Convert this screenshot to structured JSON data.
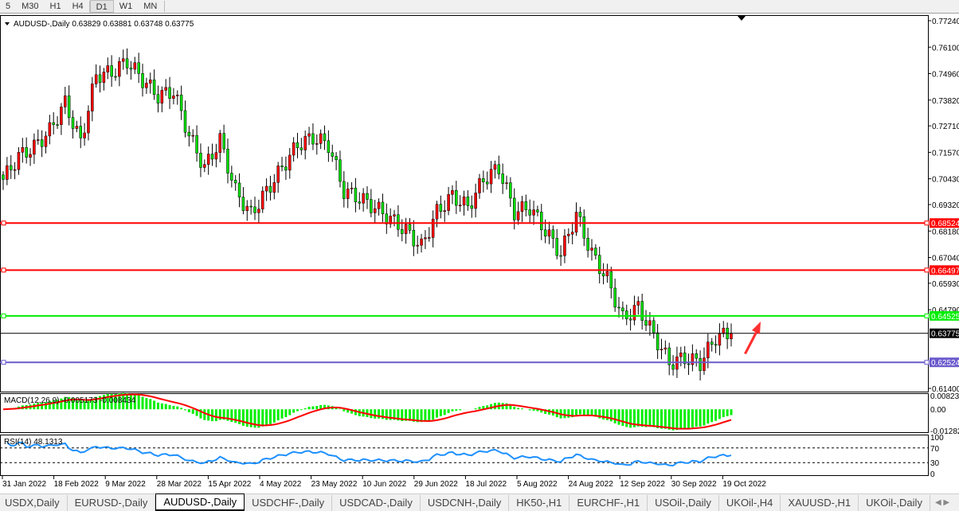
{
  "toolbar": {
    "timeframes": [
      "5",
      "M30",
      "H1",
      "H4",
      "D1",
      "W1",
      "MN"
    ],
    "active": "D1"
  },
  "chart_header": {
    "symbol": "AUDUSD-,Daily",
    "ohlc": "0.63829 0.63881 0.63748 0.63775"
  },
  "chart_data": {
    "type": "candlestick",
    "symbol": "AUDUSD-",
    "timeframe": "Daily",
    "price_ticks": [
      "0.77240",
      "0.76100",
      "0.74960",
      "0.73820",
      "0.72710",
      "0.71570",
      "0.70430",
      "0.69320",
      "0.68180",
      "0.67040",
      "0.65930",
      "0.64790",
      "0.61400"
    ],
    "ylim": [
      0.614,
      0.7724
    ],
    "date_ticks": [
      "31 Jan 2022",
      "18 Feb 2022",
      "9 Mar 2022",
      "28 Mar 2022",
      "15 Apr 2022",
      "4 May 2022",
      "23 May 2022",
      "10 Jun 2022",
      "29 Jun 2022",
      "18 Jul 2022",
      "5 Aug 2022",
      "24 Aug 2022",
      "12 Sep 2022",
      "30 Sep 2022",
      "19 Oct 2022"
    ],
    "approx_closes": [
      0.704,
      0.714,
      0.718,
      0.725,
      0.737,
      0.72,
      0.749,
      0.75,
      0.755,
      0.747,
      0.74,
      0.742,
      0.723,
      0.709,
      0.721,
      0.699,
      0.689,
      0.699,
      0.709,
      0.719,
      0.722,
      0.719,
      0.699,
      0.696,
      0.692,
      0.687,
      0.682,
      0.675,
      0.69,
      0.697,
      0.692,
      0.704,
      0.709,
      0.69,
      0.692,
      0.682,
      0.672,
      0.689,
      0.672,
      0.661,
      0.644,
      0.649,
      0.637,
      0.625,
      0.627,
      0.625,
      0.636,
      0.63775
    ],
    "bull_color": "#ff0000",
    "bear_color": "#00e000",
    "levels": [
      {
        "price": 0.68524,
        "label": "0.68524",
        "color": "#ff0000"
      },
      {
        "price": 0.66497,
        "label": "0.66497",
        "color": "#ff0000"
      },
      {
        "price": 0.64525,
        "label": "0.64525",
        "color": "#00ee00"
      },
      {
        "price": 0.63775,
        "label": "0.63775",
        "color": "#000000"
      },
      {
        "price": 0.62524,
        "label": "0.62524",
        "color": "#6a5acd"
      }
    ],
    "annotation": "red-up-arrow",
    "macd": {
      "label": "MACD(12,26,9) -0.005173 -0.008434",
      "ticks": [
        "0.00823",
        "0.00",
        "-0.01282"
      ],
      "hist_color": "#00ee00",
      "signal_color": "#ff0000"
    },
    "rsi": {
      "label": "RSI(14) 48.1313",
      "ticks": [
        "100",
        "70",
        "30",
        "0"
      ],
      "levels": [
        70,
        30
      ],
      "color": "#1e90ff"
    }
  },
  "tabs": [
    "USDX,Daily",
    "EURUSD-,Daily",
    "AUDUSD-,Daily",
    "USDCHF-,Daily",
    "USDCAD-,Daily",
    "USDCNH-,Daily",
    "HK50-,H1",
    "EURCHF-,H1",
    "USOil-,Daily",
    "UKOil-,H4",
    "XAUUSD-,H1",
    "UKOil-,Daily"
  ],
  "active_tab": "AUDUSD-,Daily"
}
